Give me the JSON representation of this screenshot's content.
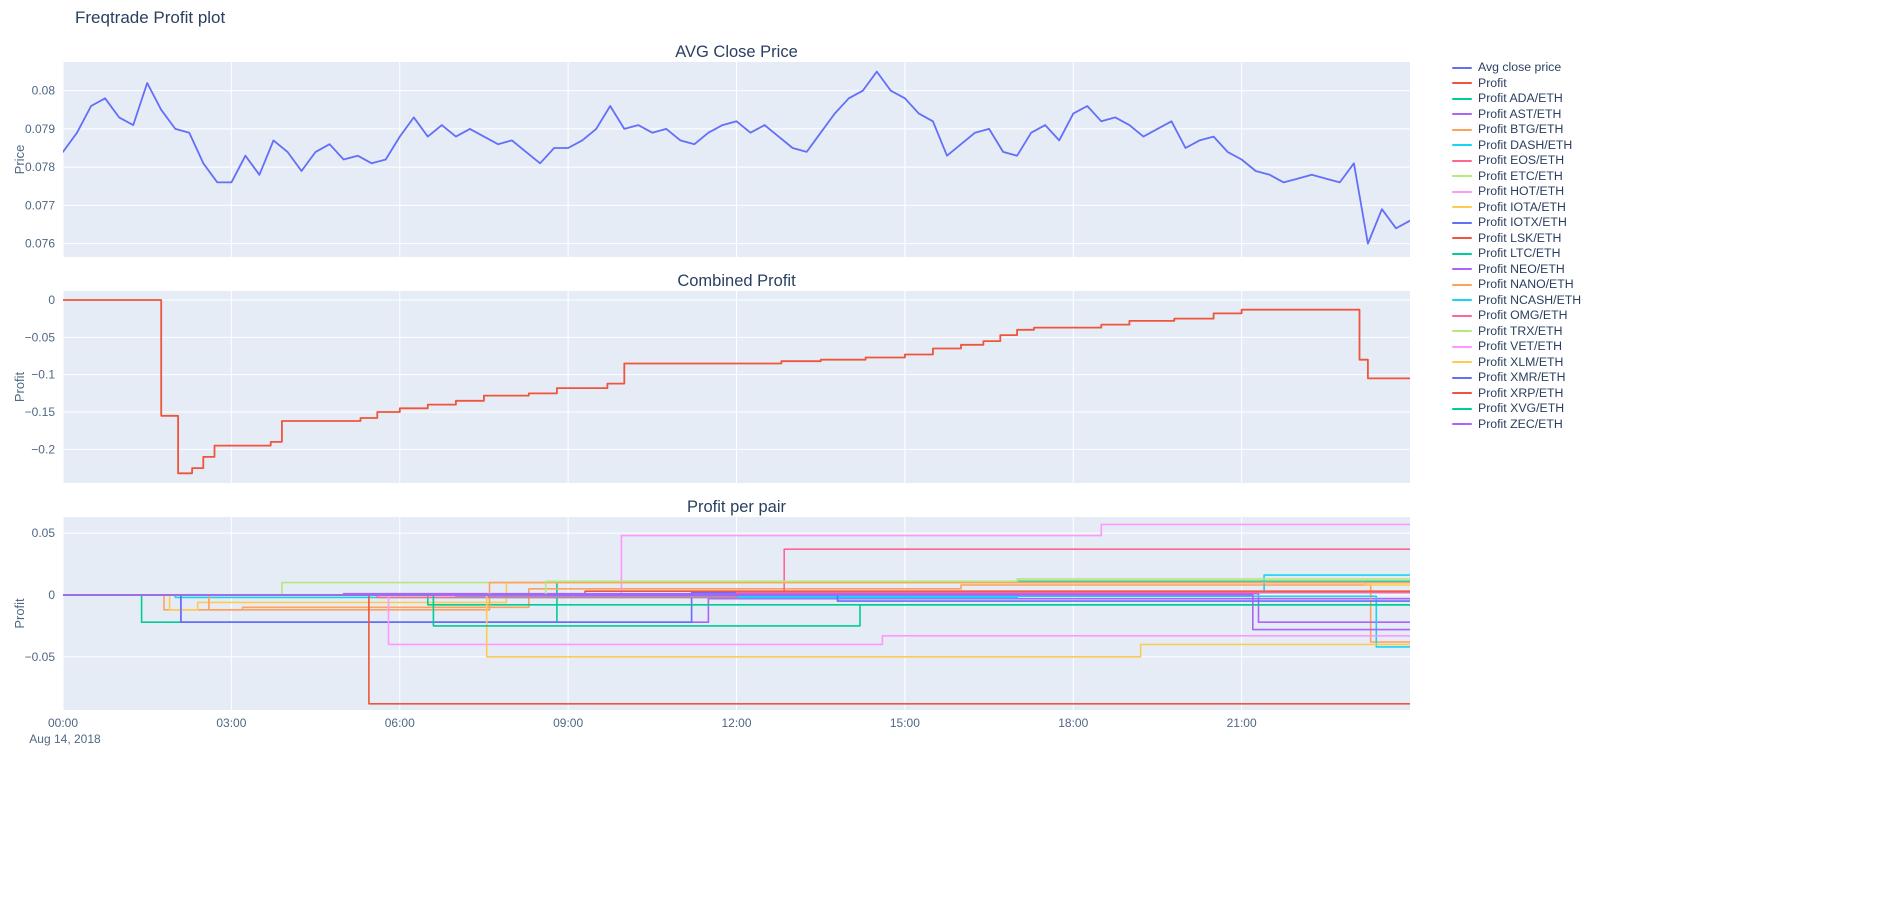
{
  "page": {
    "title": "Freqtrade Profit plot",
    "date_label": "Aug 14, 2018"
  },
  "colors": {
    "background": "#ffffff",
    "plot_background": "#e5ecf6",
    "grid": "#ffffff",
    "title_text": "#2a3f5f",
    "tick_text": "#506784"
  },
  "legend": {
    "position": "right",
    "items": [
      {
        "label": "Avg close price",
        "color": "#636efa"
      },
      {
        "label": "Profit",
        "color": "#ef553b"
      },
      {
        "label": "Profit ADA/ETH",
        "color": "#00cc96"
      },
      {
        "label": "Profit AST/ETH",
        "color": "#ab63fa"
      },
      {
        "label": "Profit BTG/ETH",
        "color": "#ffa15a"
      },
      {
        "label": "Profit DASH/ETH",
        "color": "#19d3f3"
      },
      {
        "label": "Profit EOS/ETH",
        "color": "#ff6692"
      },
      {
        "label": "Profit ETC/ETH",
        "color": "#b6e880"
      },
      {
        "label": "Profit HOT/ETH",
        "color": "#ff97ff"
      },
      {
        "label": "Profit IOTA/ETH",
        "color": "#fecb52"
      },
      {
        "label": "Profit IOTX/ETH",
        "color": "#636efa"
      },
      {
        "label": "Profit LSK/ETH",
        "color": "#ef553b"
      },
      {
        "label": "Profit LTC/ETH",
        "color": "#00cc96"
      },
      {
        "label": "Profit NEO/ETH",
        "color": "#ab63fa"
      },
      {
        "label": "Profit NANO/ETH",
        "color": "#ffa15a"
      },
      {
        "label": "Profit NCASH/ETH",
        "color": "#19d3f3"
      },
      {
        "label": "Profit OMG/ETH",
        "color": "#ff6692"
      },
      {
        "label": "Profit TRX/ETH",
        "color": "#b6e880"
      },
      {
        "label": "Profit VET/ETH",
        "color": "#ff97ff"
      },
      {
        "label": "Profit XLM/ETH",
        "color": "#fecb52"
      },
      {
        "label": "Profit XMR/ETH",
        "color": "#636efa"
      },
      {
        "label": "Profit XRP/ETH",
        "color": "#ef553b"
      },
      {
        "label": "Profit XVG/ETH",
        "color": "#00cc96"
      },
      {
        "label": "Profit ZEC/ETH",
        "color": "#ab63fa"
      }
    ]
  },
  "chart_data": [
    {
      "type": "line",
      "title": "AVG Close Price",
      "ylabel": "Price",
      "xlabel": "",
      "xlim": [
        0,
        24
      ],
      "ylim": [
        0.07565,
        0.08075
      ],
      "yticks": [
        0.076,
        0.077,
        0.078,
        0.079,
        0.08
      ],
      "ytick_labels": [
        "0.076",
        "0.077",
        "0.078",
        "0.079",
        "0.08"
      ],
      "xticks": [
        0,
        3,
        6,
        9,
        12,
        15,
        18,
        21
      ],
      "grid": true,
      "legend_position": "right",
      "series": [
        {
          "name": "Avg close price",
          "color": "#636efa",
          "mode": "linear",
          "x_start": 0,
          "x_step": 0.25,
          "values": [
            0.0784,
            0.0789,
            0.0796,
            0.0798,
            0.0793,
            0.0791,
            0.0802,
            0.0795,
            0.079,
            0.0789,
            0.0781,
            0.0776,
            0.0776,
            0.0783,
            0.0778,
            0.0787,
            0.0784,
            0.0779,
            0.0784,
            0.0786,
            0.0782,
            0.0783,
            0.0781,
            0.0782,
            0.0788,
            0.0793,
            0.0788,
            0.0791,
            0.0788,
            0.079,
            0.0788,
            0.0786,
            0.0787,
            0.0784,
            0.0781,
            0.0785,
            0.0785,
            0.0787,
            0.079,
            0.0796,
            0.079,
            0.0791,
            0.0789,
            0.079,
            0.0787,
            0.0786,
            0.0789,
            0.0791,
            0.0792,
            0.0789,
            0.0791,
            0.0788,
            0.0785,
            0.0784,
            0.0789,
            0.0794,
            0.0798,
            0.08,
            0.0805,
            0.08,
            0.0798,
            0.0794,
            0.0792,
            0.0783,
            0.0786,
            0.0789,
            0.079,
            0.0784,
            0.0783,
            0.0789,
            0.0791,
            0.0787,
            0.0794,
            0.0796,
            0.0792,
            0.0793,
            0.0791,
            0.0788,
            0.079,
            0.0792,
            0.0785,
            0.0787,
            0.0788,
            0.0784,
            0.0782,
            0.0779,
            0.0778,
            0.0776,
            0.0777,
            0.0778,
            0.0777,
            0.0776,
            0.0781,
            0.076,
            0.0769,
            0.0764,
            0.0766
          ]
        }
      ]
    },
    {
      "type": "line",
      "title": "Combined Profit",
      "ylabel": "Profit",
      "xlabel": "",
      "xlim": [
        0,
        24
      ],
      "ylim": [
        -0.245,
        0.012
      ],
      "yticks": [
        0,
        -0.05,
        -0.1,
        -0.15,
        -0.2
      ],
      "ytick_labels": [
        "0",
        "−0.05",
        "−0.1",
        "−0.15",
        "−0.2"
      ],
      "xticks": [
        0,
        3,
        6,
        9,
        12,
        15,
        18,
        21
      ],
      "grid": true,
      "series": [
        {
          "name": "Profit",
          "color": "#ef553b",
          "mode": "step",
          "points": [
            [
              0,
              0
            ],
            [
              1.75,
              -0.155
            ],
            [
              2.05,
              -0.232
            ],
            [
              2.3,
              -0.225
            ],
            [
              2.5,
              -0.21
            ],
            [
              2.7,
              -0.195
            ],
            [
              3.7,
              -0.19
            ],
            [
              3.9,
              -0.162
            ],
            [
              5.3,
              -0.158
            ],
            [
              5.6,
              -0.15
            ],
            [
              6.0,
              -0.145
            ],
            [
              6.5,
              -0.14
            ],
            [
              7.0,
              -0.135
            ],
            [
              7.5,
              -0.128
            ],
            [
              8.3,
              -0.125
            ],
            [
              8.8,
              -0.118
            ],
            [
              9.7,
              -0.112
            ],
            [
              10.0,
              -0.085
            ],
            [
              12.8,
              -0.082
            ],
            [
              13.5,
              -0.08
            ],
            [
              14.3,
              -0.077
            ],
            [
              15.0,
              -0.073
            ],
            [
              15.5,
              -0.065
            ],
            [
              16.0,
              -0.06
            ],
            [
              16.4,
              -0.055
            ],
            [
              16.7,
              -0.047
            ],
            [
              17.0,
              -0.04
            ],
            [
              17.3,
              -0.037
            ],
            [
              18.5,
              -0.033
            ],
            [
              19.0,
              -0.028
            ],
            [
              19.8,
              -0.025
            ],
            [
              20.5,
              -0.018
            ],
            [
              21.0,
              -0.013
            ],
            [
              23.1,
              -0.08
            ],
            [
              23.25,
              -0.105
            ],
            [
              24,
              -0.105
            ]
          ]
        }
      ]
    },
    {
      "type": "line",
      "title": "Profit per pair",
      "ylabel": "Profit",
      "xlabel": "",
      "xlim": [
        0,
        24
      ],
      "ylim": [
        -0.093,
        0.063
      ],
      "yticks": [
        0.05,
        0,
        -0.05
      ],
      "ytick_labels": [
        "0.05",
        "0",
        "−0.05"
      ],
      "xticks": [
        0,
        3,
        6,
        9,
        12,
        15,
        18,
        21
      ],
      "xtick_labels": [
        "00:00",
        "03:00",
        "06:00",
        "09:00",
        "12:00",
        "15:00",
        "18:00",
        "21:00"
      ],
      "grid": true,
      "series": [
        {
          "name": "Profit ADA/ETH",
          "color": "#00cc96",
          "mode": "step",
          "points": [
            [
              0,
              0
            ],
            [
              1.4,
              -0.022
            ],
            [
              8.8,
              0.011
            ],
            [
              24,
              0.011
            ]
          ]
        },
        {
          "name": "Profit AST/ETH",
          "color": "#ab63fa",
          "mode": "step",
          "points": [
            [
              0,
              0
            ],
            [
              2.1,
              -0.022
            ],
            [
              11.5,
              -0.003
            ],
            [
              24,
              -0.003
            ]
          ]
        },
        {
          "name": "Profit BTG/ETH",
          "color": "#ffa15a",
          "mode": "step",
          "points": [
            [
              0,
              0
            ],
            [
              1.8,
              -0.012
            ],
            [
              3.2,
              -0.01
            ],
            [
              8.3,
              0.005
            ],
            [
              16.0,
              0.008
            ],
            [
              23.3,
              -0.038
            ],
            [
              24,
              -0.038
            ]
          ]
        },
        {
          "name": "Profit DASH/ETH",
          "color": "#19d3f3",
          "mode": "step",
          "points": [
            [
              0,
              0
            ],
            [
              2.0,
              -0.002
            ],
            [
              17.0,
              0.002
            ],
            [
              21.4,
              0.016
            ],
            [
              24,
              0.016
            ]
          ]
        },
        {
          "name": "Profit EOS/ETH",
          "color": "#ff6692",
          "mode": "step",
          "points": [
            [
              0,
              0
            ],
            [
              12.85,
              0.037
            ],
            [
              24,
              0.037
            ]
          ]
        },
        {
          "name": "Profit ETC/ETH",
          "color": "#b6e880",
          "mode": "step",
          "points": [
            [
              0,
              0
            ],
            [
              3.9,
              0.01
            ],
            [
              24,
              0.01
            ]
          ]
        },
        {
          "name": "Profit HOT/ETH",
          "color": "#ff97ff",
          "mode": "step",
          "points": [
            [
              0,
              0
            ],
            [
              9.95,
              0.048
            ],
            [
              18.5,
              0.057
            ],
            [
              24,
              0.057
            ]
          ]
        },
        {
          "name": "Profit IOTA/ETH",
          "color": "#fecb52",
          "mode": "step",
          "points": [
            [
              0,
              0
            ],
            [
              1.9,
              -0.012
            ],
            [
              2.4,
              -0.006
            ],
            [
              7.9,
              0.01
            ],
            [
              23.2,
              0.008
            ],
            [
              24,
              0.008
            ]
          ]
        },
        {
          "name": "Profit IOTX/ETH",
          "color": "#636efa",
          "mode": "step",
          "points": [
            [
              0,
              0
            ],
            [
              2.1,
              -0.022
            ],
            [
              11.2,
              0.002
            ],
            [
              24,
              0.002
            ]
          ]
        },
        {
          "name": "Profit LSK/ETH",
          "color": "#ef553b",
          "mode": "step",
          "points": [
            [
              0,
              0
            ],
            [
              9.3,
              0.003
            ],
            [
              24,
              0.003
            ]
          ]
        },
        {
          "name": "Profit LTC/ETH",
          "color": "#00cc96",
          "mode": "step",
          "points": [
            [
              0,
              0
            ],
            [
              6.5,
              -0.008
            ],
            [
              24,
              -0.008
            ]
          ]
        },
        {
          "name": "Profit NEO/ETH",
          "color": "#ab63fa",
          "mode": "step",
          "points": [
            [
              0,
              0
            ],
            [
              5.0,
              0.001
            ],
            [
              21.3,
              -0.022
            ],
            [
              24,
              -0.022
            ]
          ]
        },
        {
          "name": "Profit NANO/ETH",
          "color": "#ffa15a",
          "mode": "step",
          "points": [
            [
              0,
              0
            ],
            [
              2.6,
              -0.012
            ],
            [
              7.6,
              0.01
            ],
            [
              24,
              0.01
            ]
          ]
        },
        {
          "name": "Profit NCASH/ETH",
          "color": "#19d3f3",
          "mode": "step",
          "points": [
            [
              0,
              0
            ],
            [
              7.0,
              -0.001
            ],
            [
              23.4,
              -0.042
            ],
            [
              24,
              -0.042
            ]
          ]
        },
        {
          "name": "Profit OMG/ETH",
          "color": "#ff6692",
          "mode": "step",
          "points": [
            [
              0,
              0
            ],
            [
              5.6,
              -0.002
            ],
            [
              12.0,
              0.002
            ],
            [
              24,
              0.002
            ]
          ]
        },
        {
          "name": "Profit TRX/ETH",
          "color": "#b6e880",
          "mode": "step",
          "points": [
            [
              0,
              0
            ],
            [
              8.6,
              0.011
            ],
            [
              17.0,
              0.013
            ],
            [
              24,
              0.013
            ]
          ]
        },
        {
          "name": "Profit VET/ETH",
          "color": "#ff97ff",
          "mode": "step",
          "points": [
            [
              0,
              0
            ],
            [
              5.8,
              -0.04
            ],
            [
              14.6,
              -0.033
            ],
            [
              24,
              -0.033
            ]
          ]
        },
        {
          "name": "Profit XLM/ETH",
          "color": "#fecb52",
          "mode": "step",
          "points": [
            [
              0,
              0
            ],
            [
              7.55,
              -0.05
            ],
            [
              19.2,
              -0.04
            ],
            [
              24,
              -0.04
            ]
          ]
        },
        {
          "name": "Profit XMR/ETH",
          "color": "#636efa",
          "mode": "step",
          "points": [
            [
              0,
              0
            ],
            [
              13.8,
              -0.005
            ],
            [
              24,
              -0.005
            ]
          ]
        },
        {
          "name": "Profit XRP/ETH",
          "color": "#ef553b",
          "mode": "step",
          "points": [
            [
              0,
              0
            ],
            [
              5.45,
              -0.088
            ],
            [
              24,
              -0.088
            ]
          ]
        },
        {
          "name": "Profit XVG/ETH",
          "color": "#00cc96",
          "mode": "step",
          "points": [
            [
              0,
              0
            ],
            [
              6.6,
              -0.025
            ],
            [
              14.2,
              -0.008
            ],
            [
              24,
              -0.008
            ]
          ]
        },
        {
          "name": "Profit ZEC/ETH",
          "color": "#ab63fa",
          "mode": "step",
          "points": [
            [
              0,
              0
            ],
            [
              21.2,
              -0.028
            ],
            [
              24,
              -0.028
            ]
          ]
        }
      ]
    }
  ]
}
